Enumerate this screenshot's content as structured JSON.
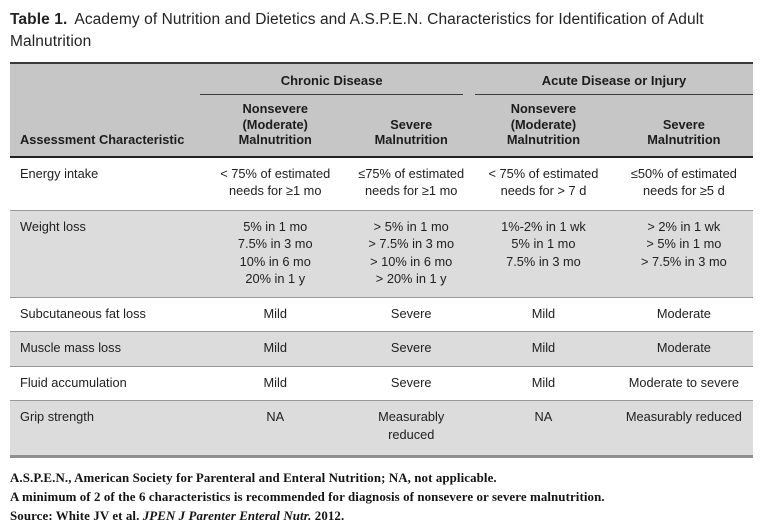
{
  "title": {
    "label": "Table 1.",
    "text": "Academy of Nutrition and Dietetics and A.S.P.E.N. Characteristics for Identification of Adult Malnutrition"
  },
  "table": {
    "group_headers": [
      "Chronic Disease",
      "Acute Disease or Injury"
    ],
    "col_headers": [
      "Assessment Characteristic",
      "Nonsevere\n(Moderate)\nMalnutrition",
      "Severe\nMalnutrition",
      "Nonsevere\n(Moderate)\nMalnutrition",
      "Severe\nMalnutrition"
    ],
    "rows": [
      {
        "cells": [
          "Energy intake",
          "< 75% of estimated\nneeds for ≥1 mo",
          "≤75% of estimated\nneeds for ≥1 mo",
          "< 75% of estimated\nneeds for > 7 d",
          "≤50% of estimated\nneeds for ≥5 d"
        ]
      },
      {
        "cells": [
          "Weight loss",
          "5% in 1 mo\n7.5% in 3 mo\n10% in 6 mo\n20% in 1 y",
          "> 5% in 1 mo\n> 7.5% in 3 mo\n> 10% in 6 mo\n> 20% in 1 y",
          "1%-2% in 1 wk\n5% in 1 mo\n7.5% in 3 mo",
          "> 2% in 1 wk\n> 5% in 1 mo\n> 7.5% in 3 mo"
        ]
      },
      {
        "cells": [
          "Subcutaneous fat loss",
          "Mild",
          "Severe",
          "Mild",
          "Moderate"
        ]
      },
      {
        "cells": [
          "Muscle mass loss",
          "Mild",
          "Severe",
          "Mild",
          "Moderate"
        ]
      },
      {
        "cells": [
          "Fluid accumulation",
          "Mild",
          "Severe",
          "Mild",
          "Moderate to severe"
        ]
      },
      {
        "cells": [
          "Grip strength",
          "NA",
          "Measurably\nreduced",
          "NA",
          "Measurably reduced"
        ]
      }
    ]
  },
  "footnotes": {
    "line1": "A.S.P.E.N., American Society for Parenteral and Enteral Nutrition; NA, not applicable.",
    "line2": "A minimum of 2 of the 6 characteristics is recommended for diagnosis of nonsevere or severe malnutrition.",
    "source": {
      "prefix": "Source: White JV et al. ",
      "journal": "JPEN J Parenter Enteral Nutr.",
      "suffix": " 2012."
    }
  },
  "colors": {
    "header_bg": "#c6c6c6",
    "stripe_bg": "#dcdcdc",
    "heavy_rule": "#222222",
    "row_rule": "#989898",
    "bottom_rule": "#8f8f8f"
  }
}
